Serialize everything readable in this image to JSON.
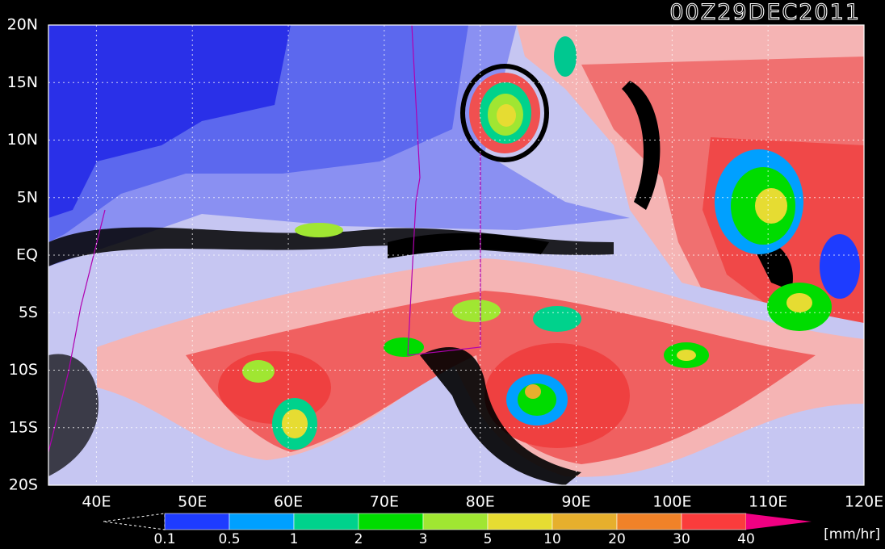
{
  "header": {
    "title": "00Z29DEC2011"
  },
  "map": {
    "lonlim": [
      35,
      120
    ],
    "latlim": [
      -20,
      20
    ],
    "lonticks": [
      {
        "value": 40,
        "label": "40E"
      },
      {
        "value": 50,
        "label": "50E"
      },
      {
        "value": 60,
        "label": "60E"
      },
      {
        "value": 70,
        "label": "70E"
      },
      {
        "value": 80,
        "label": "80E"
      },
      {
        "value": 90,
        "label": "90E"
      },
      {
        "value": 100,
        "label": "100E"
      },
      {
        "value": 110,
        "label": "110E"
      },
      {
        "value": 120,
        "label": "120E"
      }
    ],
    "latticks": [
      {
        "value": 20,
        "label": "20N"
      },
      {
        "value": 15,
        "label": "15N"
      },
      {
        "value": 10,
        "label": "10N"
      },
      {
        "value": 5,
        "label": "5N"
      },
      {
        "value": 0,
        "label": "EQ"
      },
      {
        "value": -5,
        "label": "5S"
      },
      {
        "value": -10,
        "label": "10S"
      },
      {
        "value": -15,
        "label": "15S"
      },
      {
        "value": -20,
        "label": "20S"
      }
    ]
  },
  "colorbar": {
    "levels": [
      0.1,
      0.5,
      1,
      2,
      3,
      5,
      10,
      20,
      30,
      40
    ],
    "colors": [
      "#1e3cff",
      "#00a0ff",
      "#00d28c",
      "#00dc00",
      "#a0e632",
      "#e6dc32",
      "#e6af2d",
      "#f08228",
      "#fa3c3c"
    ],
    "over_color": "#f00082",
    "unit": "[mm/hr]"
  }
}
